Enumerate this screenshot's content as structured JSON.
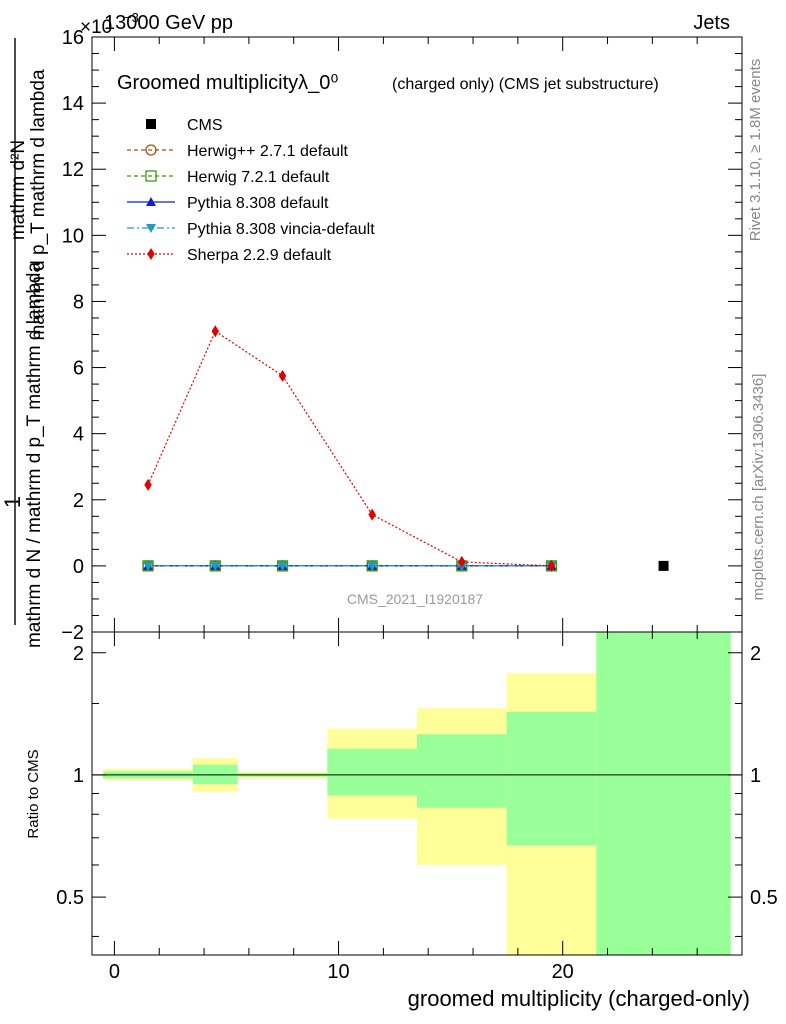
{
  "header": {
    "energy_label": "13000 GeV pp",
    "category_label": "Jets",
    "exponent_label": "×10"
  },
  "side_labels": {
    "rivet": "Rivet 3.1.10, ≥ 1.8M events",
    "mcplots": "mcplots.cern.ch [arXiv:1306.3436]"
  },
  "chart_data": [
    {
      "type": "line",
      "title": "Groomed multiplicityλ_0⁰",
      "title_suffix": "(charged only) (CMS jet substructure)",
      "watermark": "CMS_2021_I1920187",
      "ylabel_lines": [
        "1",
        "mathrm d N / mathrm d p_T mathrm d lambda",
        "mathrm d²N",
        "mathrm d p_T mathrm d lambda"
      ],
      "ylim": [
        -2,
        16
      ],
      "yticks": [
        -2,
        0,
        2,
        4,
        6,
        8,
        10,
        12,
        14,
        16
      ],
      "xlim": [
        -1,
        28
      ],
      "legend_position": "top-left",
      "series": [
        {
          "name": "CMS",
          "color": "#000000",
          "marker": "square",
          "line": "none",
          "x": [
            24.5
          ],
          "y": [
            0
          ]
        },
        {
          "name": "Herwig++ 2.7.1 default",
          "color": "#a0520a",
          "marker": "circle-open",
          "line": "dashed",
          "x": [
            1.5,
            4.5,
            7.5,
            11.5,
            15.5,
            19.5
          ],
          "y": [
            0,
            0,
            0,
            0,
            0,
            0
          ]
        },
        {
          "name": "Herwig 7.2.1 default",
          "color": "#3a9a10",
          "marker": "square-open",
          "line": "dashed",
          "x": [
            1.5,
            4.5,
            7.5,
            11.5,
            15.5,
            19.5
          ],
          "y": [
            0,
            0,
            0,
            0,
            0,
            0
          ]
        },
        {
          "name": "Pythia 8.308 default",
          "color": "#1020c8",
          "marker": "triangle-up",
          "line": "solid",
          "x": [
            1.5,
            4.5,
            7.5,
            11.5,
            15.5,
            19.5
          ],
          "y": [
            0,
            0,
            0,
            0,
            0,
            0
          ]
        },
        {
          "name": "Pythia 8.308 vincia-default",
          "color": "#1aa0b8",
          "marker": "triangle-down",
          "line": "dashdot",
          "x": [
            1.5,
            4.5,
            7.5,
            11.5,
            15.5,
            19.5
          ],
          "y": [
            0,
            0,
            0,
            0,
            0,
            0
          ]
        },
        {
          "name": "Sherpa 2.2.9 default",
          "color": "#e00000",
          "marker": "diamond",
          "line": "dotted",
          "x": [
            1.5,
            4.5,
            7.5,
            11.5,
            15.5,
            19.5
          ],
          "y": [
            2.45,
            7.1,
            5.75,
            1.55,
            0.12,
            0.0
          ]
        }
      ]
    },
    {
      "type": "area",
      "ylabel": "Ratio to CMS",
      "xlabel": "groomed multiplicity (charged-only)",
      "ylim": [
        0.36,
        2.25
      ],
      "xlim": [
        -1,
        28
      ],
      "xticks": [
        0,
        10,
        20
      ],
      "yticks": [
        0.5,
        1,
        2
      ],
      "reference_line": 1,
      "bands": [
        {
          "x_low": -0.5,
          "x_high": 3.5,
          "yellow": [
            0.97,
            1.035
          ],
          "green": [
            0.98,
            1.02
          ]
        },
        {
          "x_low": 3.5,
          "x_high": 5.5,
          "yellow": [
            0.91,
            1.1
          ],
          "green": [
            0.95,
            1.06
          ]
        },
        {
          "x_low": 5.5,
          "x_high": 9.5,
          "yellow": [
            0.98,
            1.02
          ],
          "green": [
            0.99,
            1.01
          ]
        },
        {
          "x_low": 9.5,
          "x_high": 13.5,
          "yellow": [
            0.78,
            1.3
          ],
          "green": [
            0.89,
            1.16
          ]
        },
        {
          "x_low": 13.5,
          "x_high": 17.5,
          "yellow": [
            0.6,
            1.46
          ],
          "green": [
            0.83,
            1.26
          ]
        },
        {
          "x_low": 17.5,
          "x_high": 21.5,
          "yellow": [
            0.36,
            1.78
          ],
          "green": [
            0.67,
            1.43
          ]
        },
        {
          "x_low": 21.5,
          "x_high": 27.5,
          "yellow": [
            0.36,
            2.25
          ],
          "green": [
            0.36,
            2.25
          ]
        }
      ],
      "band_colors": {
        "yellow": "#ffff99",
        "green": "#99ff99"
      }
    }
  ]
}
